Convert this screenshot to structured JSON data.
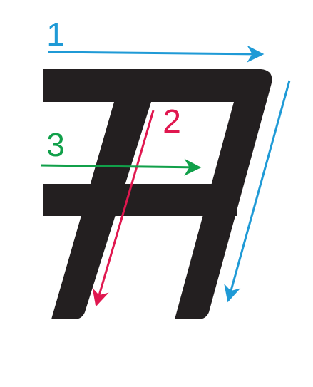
{
  "strokes": [
    {
      "label": "1"
    },
    {
      "label": "2"
    },
    {
      "label": "3"
    }
  ]
}
